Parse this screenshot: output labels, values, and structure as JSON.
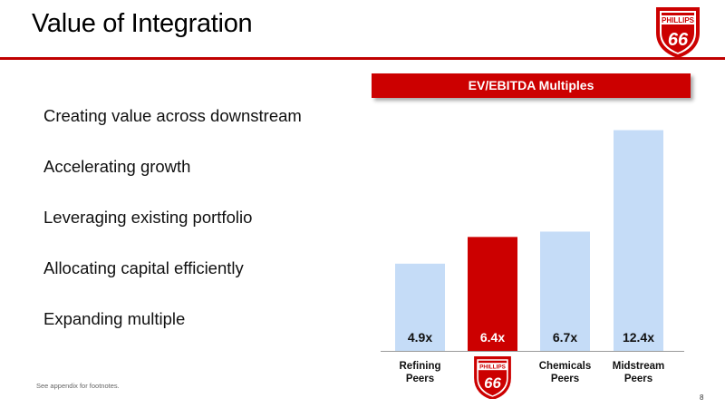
{
  "slide": {
    "title": "Value of Integration",
    "bullets": [
      "Creating value across downstream",
      "Accelerating growth",
      "Leveraging existing portfolio",
      "Allocating capital efficiently",
      "Expanding multiple"
    ],
    "footnote": "See appendix for footnotes.",
    "page_number": "8",
    "logo": {
      "icon": "phillips-66-shield-logo",
      "text_top": "PHILLIPS",
      "text_main": "66"
    }
  },
  "colors": {
    "brand_red": "#cc0000",
    "peer_bar": "#c5dcf7",
    "title_rule": "#c00000"
  },
  "chart_data": {
    "type": "bar",
    "title": "EV/EBITDA Multiples",
    "categories": [
      "Refining\nPeers",
      "Phillips 66",
      "Chemicals\nPeers",
      "Midstream\nPeers"
    ],
    "category_label_kind": [
      "text",
      "logo",
      "text",
      "text"
    ],
    "values": [
      4.9,
      6.4,
      6.7,
      12.4
    ],
    "value_labels": [
      "4.9x",
      "6.4x",
      "6.7x",
      "12.4x"
    ],
    "highlight_index": 1,
    "ylim": [
      0,
      13.6
    ],
    "grid": false,
    "legend": "none"
  }
}
